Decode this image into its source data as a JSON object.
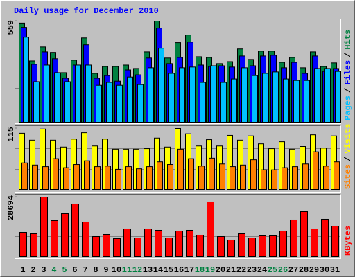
{
  "chart_data": [
    {
      "type": "bar",
      "title": "Daily usage for December 2010",
      "ylim": [
        0,
        559
      ],
      "yticks": [
        559
      ],
      "grid": true,
      "legend_separator": "/",
      "series": [
        {
          "name": "Hits",
          "color": "#008040",
          "values": [
            548,
            339,
            416,
            386,
            274,
            343,
            466,
            270,
            308,
            308,
            316,
            297,
            389,
            559,
            355,
            440,
            482,
            362,
            358,
            324,
            335,
            405,
            347,
            393,
            393,
            331,
            358,
            301,
            389,
            308,
            328
          ]
        },
        {
          "name": "Files",
          "color": "#0000ff",
          "values": [
            524,
            320,
            389,
            351,
            243,
            316,
            428,
            243,
            258,
            227,
            289,
            262,
            355,
            520,
            324,
            358,
            443,
            316,
            308,
            312,
            305,
            366,
            312,
            366,
            370,
            301,
            331,
            270,
            366,
            281,
            297
          ]
        },
        {
          "name": "Pages",
          "color": "#00c0ff",
          "values": [
            470,
            224,
            316,
            274,
            224,
            316,
            316,
            204,
            220,
            204,
            250,
            208,
            301,
            409,
            270,
            301,
            305,
            220,
            312,
            220,
            239,
            301,
            258,
            270,
            278,
            239,
            231,
            231,
            297,
            297,
            281
          ]
        }
      ]
    },
    {
      "type": "bar",
      "ylim": [
        0,
        115
      ],
      "yticks": [
        115
      ],
      "grid": true,
      "legend_separator": "/",
      "series": [
        {
          "name": "Visits",
          "color": "#ffff00",
          "values": [
            106,
            93,
            114,
            93,
            80,
            95,
            107,
            82,
            95,
            76,
            76,
            76,
            77,
            97,
            80,
            115,
            105,
            82,
            94,
            82,
            102,
            93,
            101,
            86,
            77,
            90,
            76,
            81,
            103,
            78,
            101
          ]
        },
        {
          "name": "Sites",
          "color": "#ff8000",
          "values": [
            50,
            46,
            43,
            58,
            41,
            47,
            54,
            43,
            44,
            38,
            43,
            39,
            43,
            52,
            47,
            76,
            58,
            44,
            59,
            48,
            43,
            46,
            56,
            37,
            37,
            41,
            43,
            48,
            71,
            44,
            52
          ]
        }
      ]
    },
    {
      "type": "bar",
      "ylim": [
        0,
        28694
      ],
      "yticks": [
        28694
      ],
      "grid": true,
      "categories": [
        "1",
        "2",
        "3",
        "4",
        "5",
        "6",
        "7",
        "8",
        "9",
        "10",
        "11",
        "12",
        "13",
        "14",
        "15",
        "16",
        "17",
        "18",
        "19",
        "20",
        "21",
        "22",
        "23",
        "24",
        "25",
        "26",
        "27",
        "28",
        "29",
        "30",
        "31"
      ],
      "category_colors": [
        "#000000",
        "#000000",
        "#000000",
        "#008040",
        "#008040",
        "#000000",
        "#000000",
        "#000000",
        "#000000",
        "#000000",
        "#008040",
        "#008040",
        "#000000",
        "#000000",
        "#000000",
        "#000000",
        "#000000",
        "#008040",
        "#008040",
        "#000000",
        "#000000",
        "#000000",
        "#000000",
        "#000000",
        "#008040",
        "#008040",
        "#000000",
        "#000000",
        "#000000",
        "#000000",
        "#000000"
      ],
      "series": [
        {
          "name": "KBytes",
          "color": "#ff0000",
          "values": [
            11680,
            11011,
            28694,
            17352,
            20689,
            25361,
            16685,
            9677,
            10678,
            8676,
            13348,
            9010,
            13348,
            12680,
            9010,
            12347,
            12680,
            10345,
            26362,
            9677,
            8009,
            11012,
            9010,
            10011,
            10011,
            12347,
            17686,
            21691,
            13348,
            18020,
            14683
          ]
        }
      ]
    }
  ]
}
